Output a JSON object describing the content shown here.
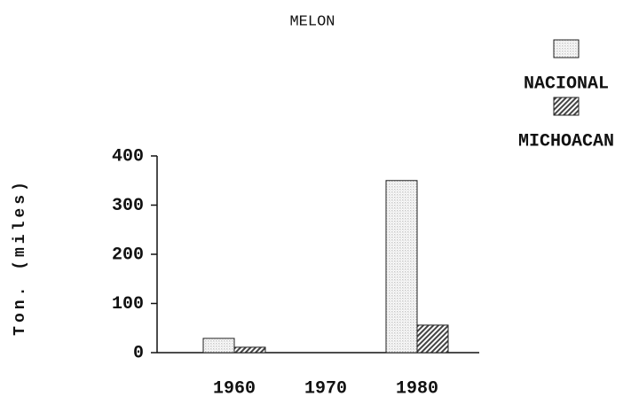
{
  "chart_data": {
    "type": "bar",
    "title": "MELON",
    "y_label": "Ton. (miles)",
    "categories": [
      "1960",
      "1970",
      "1980"
    ],
    "series": [
      {
        "name": "NACIONAL",
        "color": "#c8c8c8",
        "pattern": "dots",
        "values": [
          29,
          0,
          350
        ]
      },
      {
        "name": "MICHOACAN",
        "color": "#444444",
        "pattern": "hatch",
        "values": [
          11,
          0,
          56
        ]
      }
    ],
    "ylim": [
      0,
      400
    ],
    "yticks": [
      0,
      100,
      200,
      300,
      400
    ],
    "grid": false,
    "legend": "upper right"
  }
}
